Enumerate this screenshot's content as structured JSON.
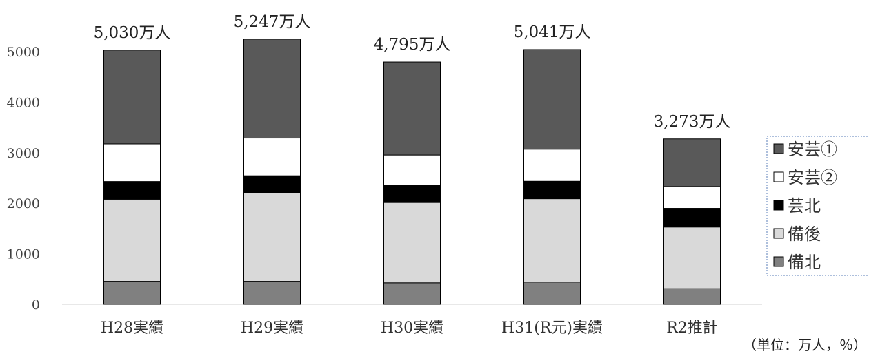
{
  "chart_data": {
    "type": "bar",
    "stacked": true,
    "categories": [
      "H28実績",
      "H29実績",
      "H30実績",
      "H31(R元)実績",
      "R2推計"
    ],
    "totals": [
      "5,030万人",
      "5,247万人",
      "4,795万人",
      "5,041万人",
      "3,273万人"
    ],
    "series": [
      {
        "name": "備北",
        "values": [
          455,
          455,
          425,
          440,
          310
        ],
        "color": "#808080"
      },
      {
        "name": "備後",
        "values": [
          1625,
          1755,
          1590,
          1650,
          1220
        ],
        "color": "#d9d9d9"
      },
      {
        "name": "芸北",
        "values": [
          350,
          335,
          335,
          345,
          370
        ],
        "color": "#000000"
      },
      {
        "name": "安芸②",
        "values": [
          745,
          745,
          605,
          635,
          430
        ],
        "color": "#ffffff"
      },
      {
        "name": "安芸①",
        "values": [
          1855,
          1957,
          1840,
          1971,
          943
        ],
        "color": "#595959"
      }
    ],
    "legend_order": [
      "安芸①",
      "安芸②",
      "芸北",
      "備後",
      "備北"
    ],
    "yticks": [
      0,
      1000,
      2000,
      3000,
      4000,
      5000
    ],
    "ylim": [
      0,
      5000
    ],
    "grid": false,
    "legend_position": "right",
    "unit_note": "（単位：万人，％）"
  }
}
